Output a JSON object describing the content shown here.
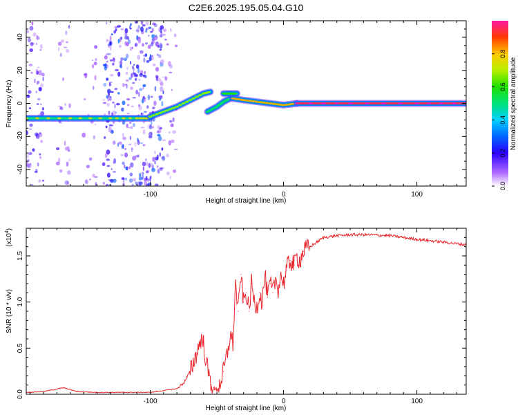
{
  "title": "C2E6.2025.195.05.04.G10",
  "colors": {
    "trace": "#e8262c",
    "axis": "#000000",
    "scatter": "#8c3cf0"
  },
  "chart_data": [
    {
      "type": "heatmap",
      "xlabel": "Height of straight line (km)",
      "ylabel": "Frequency (Hz)",
      "xlim": [
        -193,
        137
      ],
      "ylim": [
        -50,
        50
      ],
      "xticks": [
        -100,
        0,
        100
      ],
      "xtick_labels": [
        "-100",
        "0",
        "100"
      ],
      "yticks": [
        -40,
        -20,
        0,
        20,
        40
      ],
      "ytick_labels": [
        "-40",
        "-20",
        "0",
        "20",
        "40"
      ],
      "colorbar": {
        "label": "Normalized spectral amplitude",
        "ticks": [
          0.0,
          0.2,
          0.4,
          0.6,
          0.8
        ],
        "tick_labels": [
          "0.0",
          "0.2",
          "0.4",
          "0.6",
          "0.8"
        ],
        "range": [
          0,
          1
        ],
        "colormap": "rainbow"
      },
      "ridges": [
        {
          "x": [
            -193,
            -160,
            -130,
            -110,
            -100
          ],
          "y": [
            -9,
            -9,
            -9,
            -9,
            -9
          ],
          "amplitude": 0.5
        },
        {
          "x": [
            -100,
            -90,
            -80,
            -70,
            -60,
            -55
          ],
          "y": [
            -8,
            -5,
            -2,
            2,
            6,
            7
          ],
          "amplitude": 0.45
        },
        {
          "x": [
            -57,
            -50,
            -45,
            -40
          ],
          "y": [
            -5,
            -2,
            1,
            3
          ],
          "amplitude": 0.35
        },
        {
          "x": [
            -45,
            -40,
            -35
          ],
          "y": [
            6,
            6,
            6
          ],
          "amplitude": 0.4
        },
        {
          "x": [
            -38,
            -30,
            -20,
            -10,
            0,
            10
          ],
          "y": [
            3,
            2,
            1,
            0,
            -1,
            0
          ],
          "amplitude": 0.55
        },
        {
          "x": [
            10,
            50,
            100,
            137
          ],
          "y": [
            0,
            0,
            0,
            0
          ],
          "amplitude": 0.95
        }
      ]
    },
    {
      "type": "line",
      "xlabel": "Height of straight line (km)",
      "ylabel": "SNR (10 * v/v)",
      "y_multiplier": "(x10",
      "y_multiplier_exp": "4",
      "y_multiplier_close": ")",
      "xlim": [
        -193,
        137
      ],
      "ylim": [
        0,
        1.8
      ],
      "xticks": [
        -100,
        0,
        100
      ],
      "xtick_labels": [
        "-100",
        "0",
        "100"
      ],
      "yticks": [
        0,
        0.5,
        1.0,
        1.5
      ],
      "ytick_labels": [
        "0.0",
        "0.5",
        "1.0",
        "1.5"
      ],
      "series": [
        {
          "x": [
            -193,
            -180,
            -165,
            -155,
            -140,
            -120,
            -100,
            -90,
            -80,
            -75,
            -70,
            -65,
            -62,
            -60,
            -58,
            -56,
            -54,
            -52,
            -50,
            -48,
            -45,
            -42,
            -40,
            -38,
            -36,
            -34,
            -32,
            -30,
            -28,
            -26,
            -24,
            -22,
            -20,
            -18,
            -16,
            -14,
            -12,
            -10,
            -8,
            -6,
            -4,
            -2,
            0,
            2,
            5,
            8,
            10,
            12,
            15,
            20,
            25,
            30,
            40,
            50,
            60,
            80,
            100,
            120,
            137
          ],
          "y": [
            0.02,
            0.03,
            0.07,
            0.03,
            0.02,
            0.02,
            0.02,
            0.04,
            0.06,
            0.12,
            0.25,
            0.45,
            0.6,
            0.55,
            0.35,
            0.2,
            0.1,
            0.05,
            0.05,
            0.1,
            0.25,
            0.45,
            0.65,
            0.55,
            1.2,
            0.9,
            1.3,
            1.0,
            1.1,
            0.9,
            1.2,
            1.0,
            0.95,
            1.1,
            1.0,
            1.3,
            1.05,
            1.2,
            1.1,
            1.25,
            1.15,
            1.3,
            1.2,
            1.35,
            1.45,
            1.4,
            1.5,
            1.45,
            1.55,
            1.6,
            1.65,
            1.7,
            1.72,
            1.73,
            1.73,
            1.72,
            1.68,
            1.65,
            1.62
          ]
        }
      ]
    }
  ]
}
